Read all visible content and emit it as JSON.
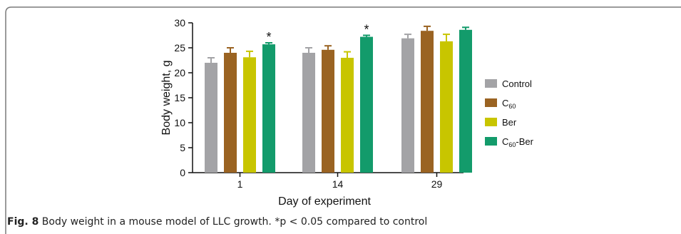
{
  "caption": {
    "label": "Fig. 8",
    "text": "Body weight in a mouse model of LLC growth. *p < 0.05 compared to control"
  },
  "chart_data": {
    "type": "bar",
    "categories": [
      "1",
      "14",
      "29"
    ],
    "xlabel": "Day of experiment",
    "ylabel": "Body weight, g",
    "ylim": [
      0,
      30
    ],
    "yticks": [
      0,
      5,
      10,
      15,
      20,
      25,
      30
    ],
    "legend_position": "right",
    "grid": false,
    "series": [
      {
        "name": "Control",
        "color": "#a3a3a6",
        "values": [
          22.0,
          24.0,
          26.9
        ],
        "errors": [
          1.0,
          1.0,
          0.8
        ]
      },
      {
        "name": "C60",
        "color": "#9a6322",
        "values": [
          24.0,
          24.6,
          28.4
        ],
        "errors": [
          1.0,
          0.8,
          0.9
        ]
      },
      {
        "name": "Ber",
        "color": "#c8c500",
        "values": [
          23.1,
          23.0,
          26.3
        ],
        "errors": [
          1.2,
          1.2,
          1.4
        ]
      },
      {
        "name": "C60-Ber",
        "color": "#139b6b",
        "values": [
          25.7,
          27.2,
          28.6
        ],
        "errors": [
          0.3,
          0.3,
          0.5
        ]
      }
    ],
    "annotations": [
      {
        "text": "*",
        "series": 3,
        "category": 0
      },
      {
        "text": "*",
        "series": 3,
        "category": 1
      }
    ]
  }
}
